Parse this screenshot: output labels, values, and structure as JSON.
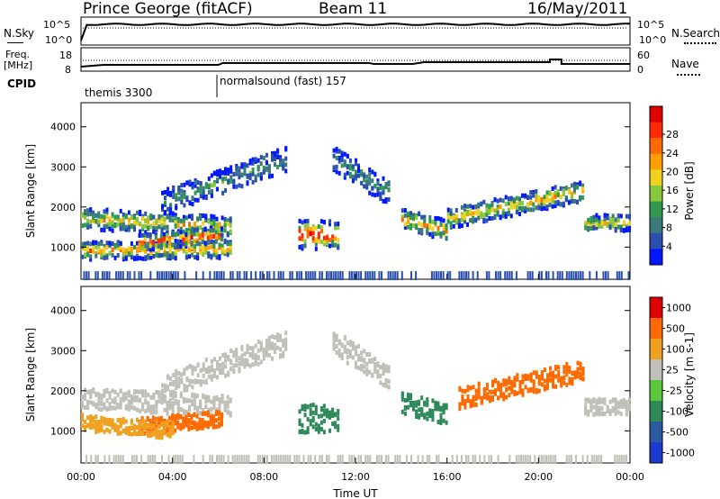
{
  "header": {
    "station": "Prince George (fitACF)",
    "beam": "Beam 11",
    "date": "16/May/2011"
  },
  "noise_panel": {
    "left_label": "N.Sky",
    "left_ticks": [
      "10^5",
      "10^0"
    ],
    "right_label": "N.Search",
    "right_ticks": [
      "10^5",
      "10^0"
    ]
  },
  "freq_panel": {
    "left_label_line1": "Freq.",
    "left_label_line2": "[MHz]",
    "left_ticks": [
      "18",
      "8"
    ],
    "right_label": "Nave",
    "right_ticks": [
      "60",
      "0"
    ]
  },
  "cpid_panel": {
    "label": "CPID",
    "modes": [
      "themis 3300",
      "normalsound (fast) 157"
    ]
  },
  "chart_data": [
    {
      "type": "heatmap",
      "ylabel": "Slant Range [km]",
      "y_ticks": [
        "1000",
        "2000",
        "3000",
        "4000"
      ],
      "ylim": [
        200,
        4600
      ],
      "colorbar_label": "Power [dB]",
      "colorbar_ticks": [
        "4",
        "8",
        "12",
        "16",
        "20",
        "24",
        "28"
      ],
      "colorbar_colors": [
        "#0018ff",
        "#2a4fb0",
        "#3a7a7a",
        "#2f9a4f",
        "#88c83c",
        "#f0d020",
        "#ffa000",
        "#ff6a00",
        "#ff2a00",
        "#e10000"
      ],
      "echo_bands_approx": [
        {
          "from_hour": 0,
          "to_hour": 6.5,
          "range_km": [
            600,
            2000
          ],
          "level": "moderate-strong"
        },
        {
          "from_hour": 9.5,
          "to_hour": 11.2,
          "range_km": [
            900,
            1700
          ],
          "level": "strong"
        },
        {
          "from_hour": 14,
          "to_hour": 22,
          "range_km": [
            1200,
            2600
          ],
          "level": "moderate"
        }
      ]
    },
    {
      "type": "heatmap",
      "ylabel": "Slant Range [km]",
      "y_ticks": [
        "1000",
        "2000",
        "3000",
        "4000"
      ],
      "ylim": [
        200,
        4600
      ],
      "colorbar_label": "Velocity [m s-1]",
      "colorbar_ticks": [
        "1000",
        "500",
        "100",
        "25",
        "-25",
        "-100",
        "-500",
        "-1000"
      ],
      "colorbar_colors": [
        "#1d3ad0",
        "#2a5aa0",
        "#2f8a5a",
        "#5ac83c",
        "#c0c0b8",
        "#f0a020",
        "#ff6a00",
        "#e10000"
      ]
    }
  ],
  "x_axis": {
    "label": "Time UT",
    "ticks": [
      "00:00",
      "04:00",
      "08:00",
      "12:00",
      "16:00",
      "20:00",
      "00:00"
    ]
  }
}
